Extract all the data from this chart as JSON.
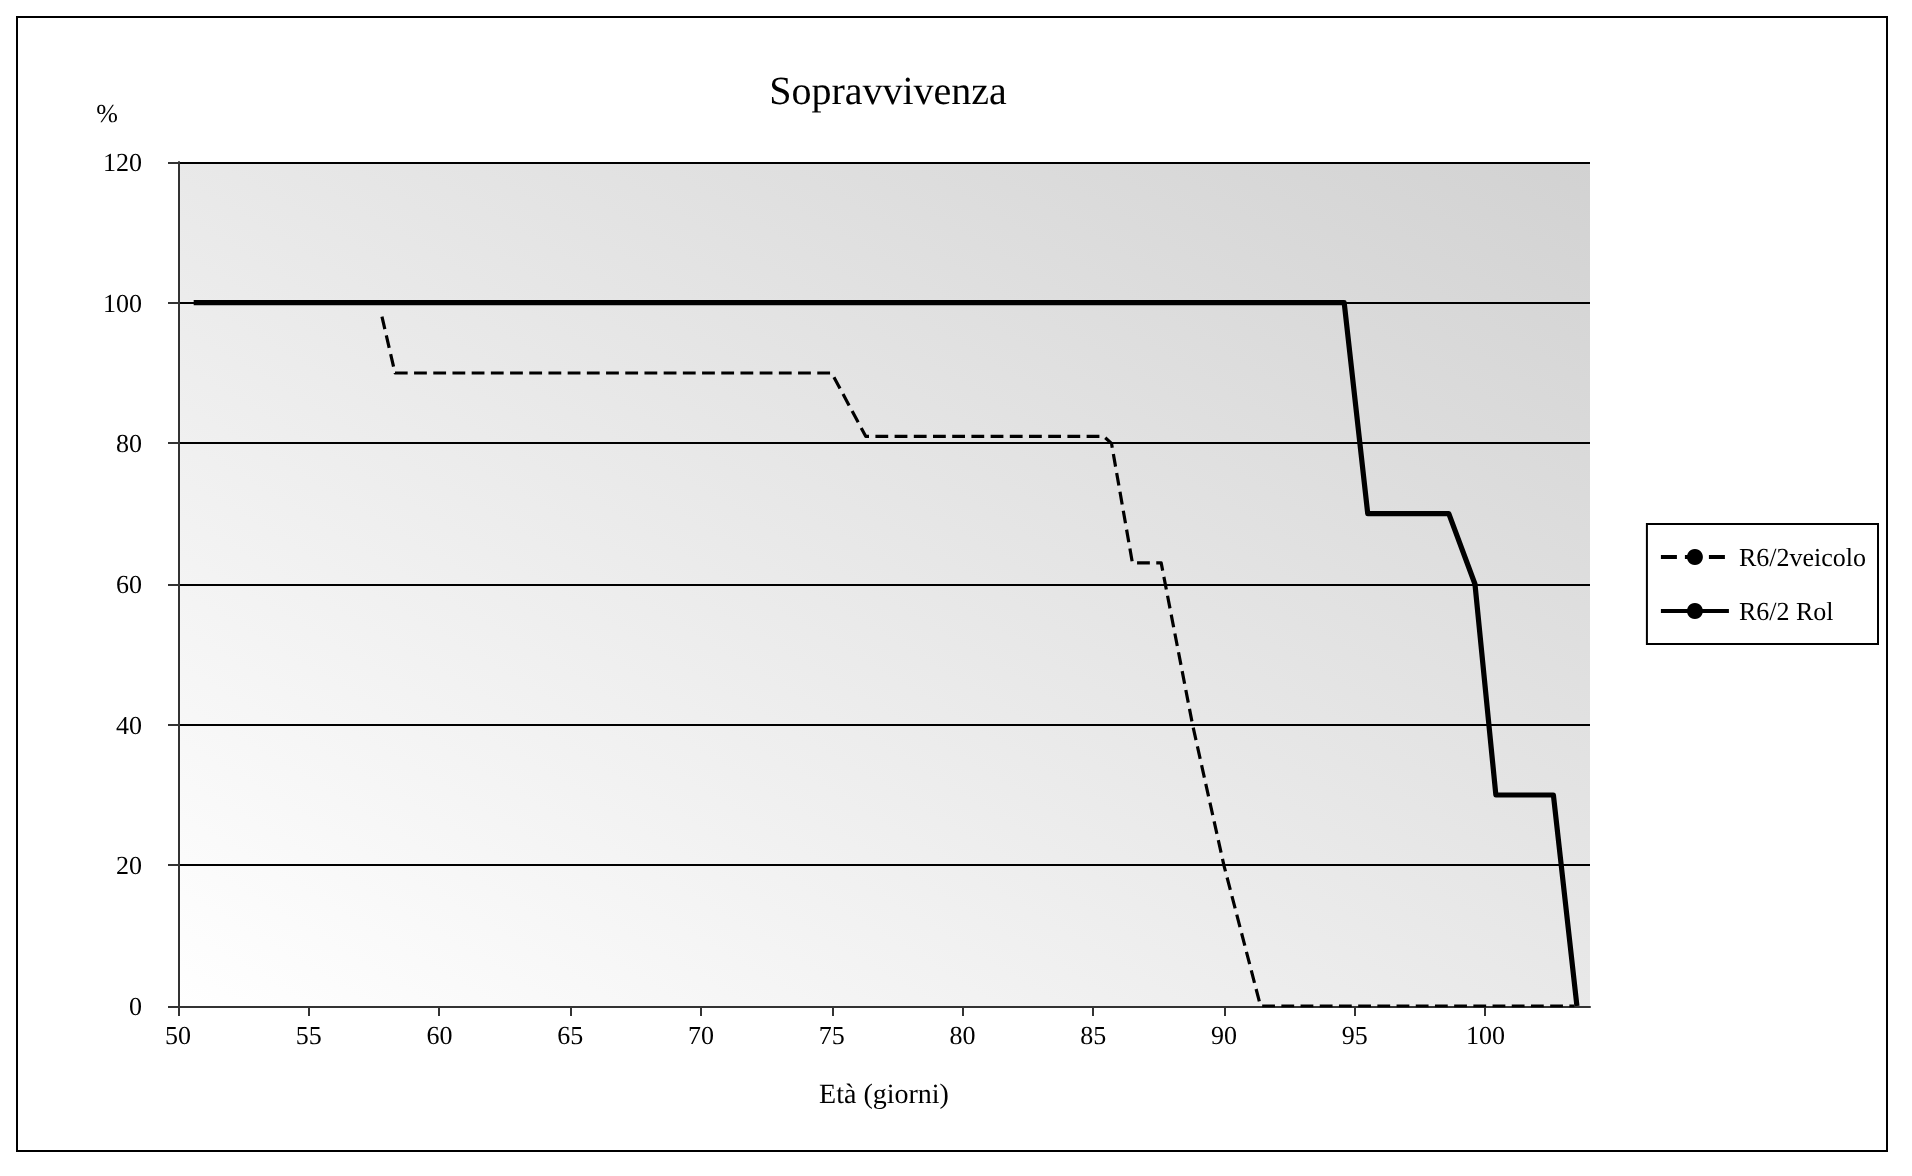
{
  "chart_data": {
    "type": "line",
    "title": "Sopravvivenza",
    "xlabel": "Età (giorni)",
    "ylabel": "%",
    "xlim": [
      50,
      104
    ],
    "xticks": [
      50,
      55,
      60,
      65,
      70,
      75,
      80,
      85,
      90,
      95,
      100
    ],
    "ylim": [
      0,
      120
    ],
    "yticks": [
      0,
      20,
      40,
      60,
      80,
      100,
      120
    ],
    "grid": "y",
    "legend": "right",
    "marker": "none",
    "series": [
      {
        "name": "R6/2veicolo",
        "color": "#000000",
        "line_style": "dashed",
        "x": [
          57.8,
          58.3,
          75.0,
          76.3,
          85.4,
          85.7,
          86.5,
          87.6,
          88.8,
          90.0,
          91.4,
          103.4
        ],
        "values": [
          98,
          90,
          90,
          81,
          81,
          80,
          63,
          63,
          40,
          20,
          0,
          0
        ]
      },
      {
        "name": "R6/2 Rol",
        "color": "#000000",
        "line_style": "solid",
        "x": [
          50.6,
          94.6,
          95.5,
          98.6,
          99.6,
          100.4,
          102.6,
          103.5
        ],
        "values": [
          100,
          100,
          70,
          70,
          60,
          30,
          30,
          0
        ]
      }
    ]
  }
}
